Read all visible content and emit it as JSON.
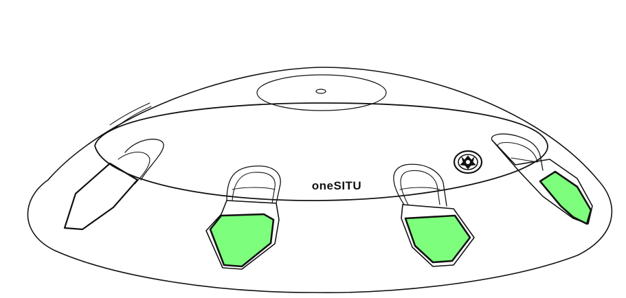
{
  "brand_label": "oneSITU",
  "colors": {
    "outline": "#111111",
    "highlight": "#7dff7d",
    "background": "#ffffff"
  },
  "icons": {
    "emblem": "gear-emblem-icon"
  }
}
